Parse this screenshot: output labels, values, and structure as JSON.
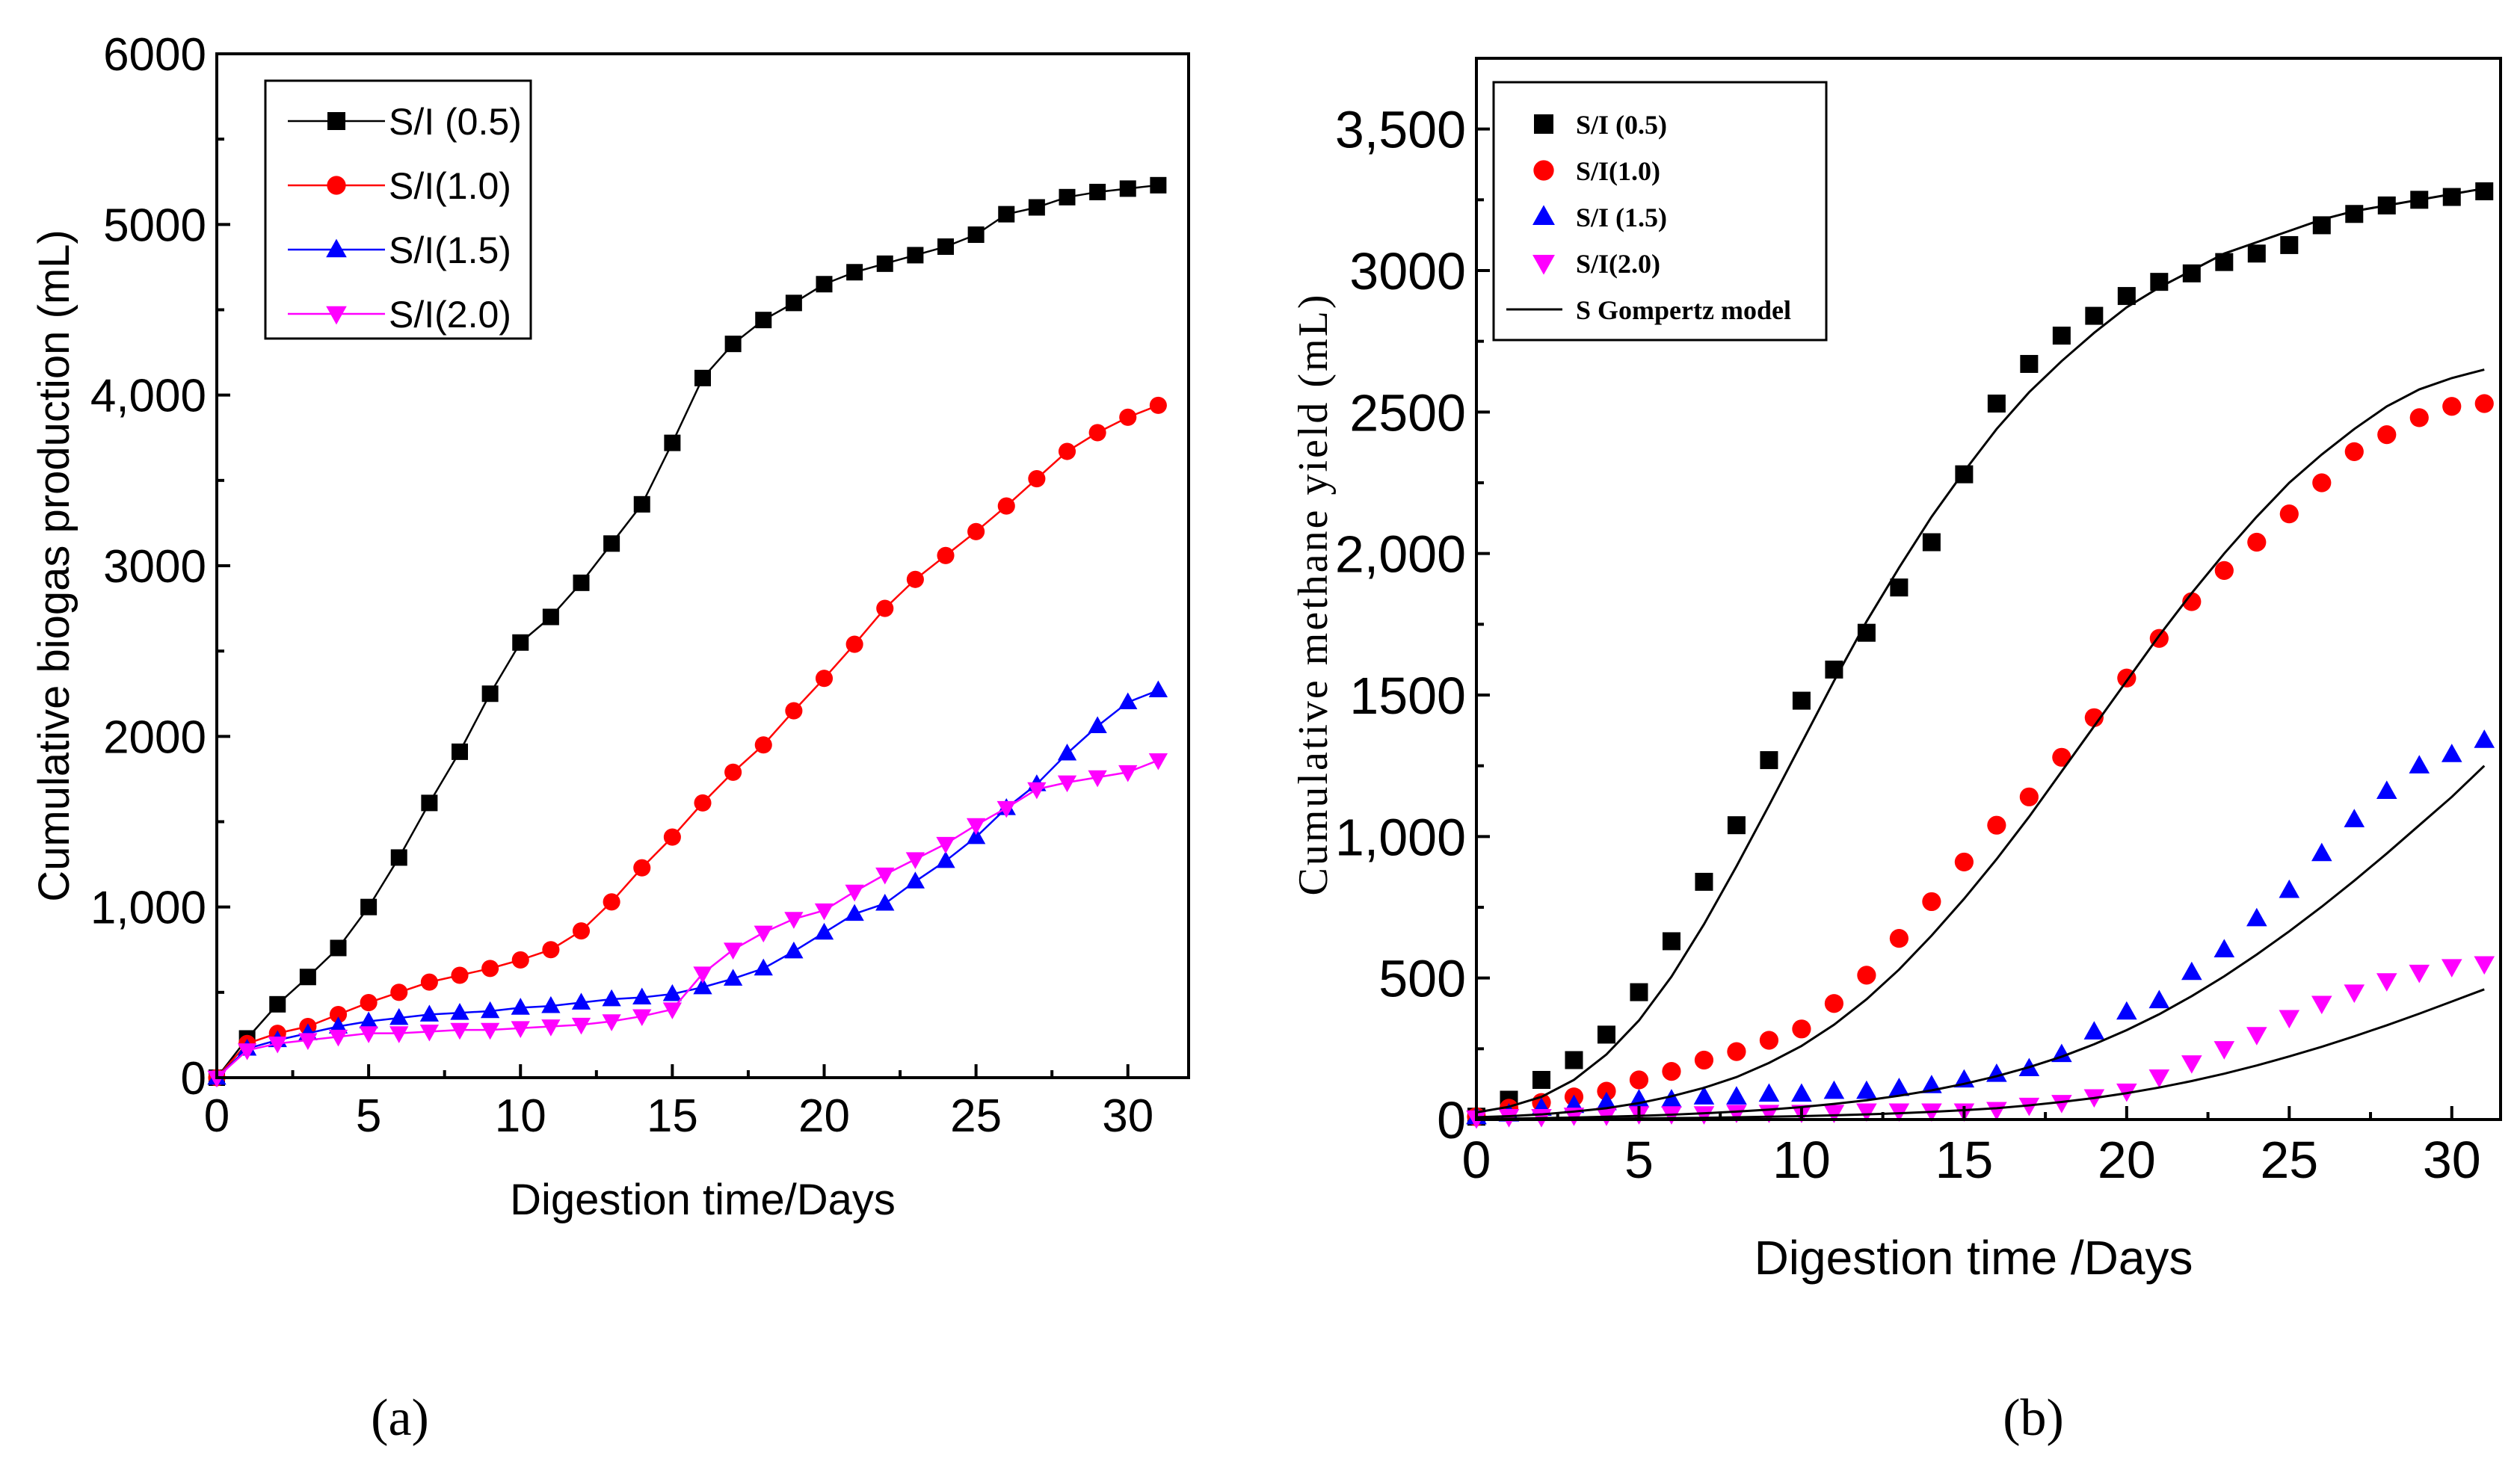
{
  "chart_data": [
    {
      "type": "line",
      "panel_label": "(a)",
      "title": "",
      "xlabel": "Digestion time/Days",
      "ylabel": "Cumulative biogas production (mL)",
      "xlim": [
        0,
        32
      ],
      "ylim": [
        0,
        6000
      ],
      "xticks": [
        "0",
        "5",
        "10",
        "15",
        "20",
        "25",
        "30"
      ],
      "yticks": [
        "0",
        "1,000",
        "2000",
        "3000",
        "4,000",
        "5000",
        "6000"
      ],
      "legend_position": "top-left",
      "x": [
        0,
        1,
        2,
        3,
        4,
        5,
        6,
        7,
        8,
        9,
        10,
        11,
        12,
        13,
        14,
        15,
        16,
        17,
        18,
        19,
        20,
        21,
        22,
        23,
        24,
        25,
        26,
        27,
        28,
        29,
        30,
        31
      ],
      "series": [
        {
          "name": "S/I (0.5)",
          "color": "#000000",
          "marker": "square",
          "values": [
            0,
            230,
            430,
            590,
            760,
            1000,
            1290,
            1610,
            1910,
            2250,
            2550,
            2700,
            2900,
            3130,
            3360,
            3720,
            4100,
            4300,
            4440,
            4540,
            4650,
            4720,
            4770,
            4820,
            4870,
            4940,
            5060,
            5100,
            5160,
            5190,
            5210,
            5230
          ]
        },
        {
          "name": "S/I(1.0)",
          "color": "#ff0000",
          "marker": "circle",
          "values": [
            0,
            200,
            260,
            300,
            370,
            440,
            500,
            560,
            600,
            640,
            690,
            750,
            860,
            1030,
            1230,
            1410,
            1610,
            1790,
            1950,
            2150,
            2340,
            2540,
            2750,
            2920,
            3060,
            3200,
            3350,
            3510,
            3670,
            3780,
            3870,
            3940
          ]
        },
        {
          "name": "S/I(1.5)",
          "color": "#0000ff",
          "marker": "triangle-up",
          "values": [
            0,
            170,
            220,
            260,
            300,
            330,
            350,
            370,
            380,
            390,
            410,
            420,
            440,
            460,
            470,
            490,
            530,
            580,
            640,
            740,
            850,
            960,
            1020,
            1150,
            1270,
            1410,
            1580,
            1720,
            1900,
            2060,
            2200,
            2270
          ]
        },
        {
          "name": "S/I(2.0)",
          "color": "#ff00ff",
          "marker": "triangle-down",
          "values": [
            0,
            160,
            200,
            220,
            240,
            260,
            260,
            270,
            280,
            280,
            290,
            300,
            310,
            330,
            360,
            400,
            610,
            750,
            850,
            930,
            980,
            1090,
            1190,
            1280,
            1370,
            1480,
            1580,
            1690,
            1730,
            1760,
            1790,
            1860
          ]
        }
      ]
    },
    {
      "type": "scatter",
      "panel_label": "(b)",
      "title": "",
      "xlabel": "Digestion time /Days",
      "ylabel": "Cumulative methane yield (mL)",
      "xlim": [
        0,
        31.5
      ],
      "ylim": [
        0,
        3750
      ],
      "xticks": [
        "0",
        "5",
        "10",
        "15",
        "20",
        "25",
        "30"
      ],
      "yticks": [
        "0",
        "500",
        "1,000",
        "1500",
        "2,000",
        "2500",
        "3000",
        "3,500"
      ],
      "legend_position": "top-left",
      "x": [
        0,
        1,
        2,
        3,
        4,
        5,
        6,
        7,
        8,
        9,
        10,
        11,
        12,
        13,
        14,
        15,
        16,
        17,
        18,
        19,
        20,
        21,
        22,
        23,
        24,
        25,
        26,
        27,
        28,
        29,
        30,
        31
      ],
      "series": [
        {
          "name": "S/I (0.5)",
          "color": "#000000",
          "marker": "square",
          "values": [
            10,
            70,
            140,
            210,
            300,
            450,
            630,
            840,
            1040,
            1270,
            1480,
            1590,
            1720,
            1880,
            2040,
            2280,
            2530,
            2670,
            2770,
            2840,
            2910,
            2960,
            2990,
            3030,
            3060,
            3090,
            3160,
            3200,
            3230,
            3250,
            3260,
            3280
          ]
        },
        {
          "name": "S/I(1.0)",
          "color": "#ff0000",
          "marker": "circle",
          "values": [
            10,
            40,
            60,
            80,
            100,
            140,
            170,
            210,
            240,
            280,
            320,
            410,
            510,
            640,
            770,
            910,
            1040,
            1140,
            1280,
            1420,
            1560,
            1700,
            1830,
            1940,
            2040,
            2140,
            2250,
            2360,
            2420,
            2480,
            2520,
            2530
          ]
        },
        {
          "name": "S/I (1.5)",
          "color": "#0000ff",
          "marker": "triangle-up",
          "values": [
            10,
            20,
            40,
            50,
            60,
            70,
            70,
            80,
            80,
            90,
            90,
            100,
            100,
            110,
            120,
            140,
            160,
            180,
            230,
            310,
            380,
            420,
            520,
            600,
            710,
            810,
            940,
            1060,
            1160,
            1250,
            1290,
            1340
          ]
        },
        {
          "name": "S/I(2.0)",
          "color": "#ff00ff",
          "marker": "triangle-down",
          "values": [
            5,
            10,
            10,
            15,
            15,
            20,
            20,
            20,
            25,
            25,
            25,
            25,
            30,
            30,
            30,
            30,
            35,
            50,
            60,
            80,
            100,
            150,
            200,
            250,
            300,
            360,
            410,
            450,
            490,
            520,
            540,
            550
          ]
        },
        {
          "name": "S Gompertz model",
          "color": "#000000",
          "marker": "none",
          "kind": "model-curves",
          "curves": [
            {
              "for": "S/I (0.5)",
              "values": [
                25,
                45,
                80,
                140,
                230,
                350,
                505,
                690,
                895,
                1110,
                1330,
                1550,
                1760,
                1950,
                2130,
                2290,
                2440,
                2570,
                2680,
                2780,
                2870,
                2940,
                3000,
                3060,
                3100,
                3140,
                3180,
                3210,
                3230,
                3250,
                3270,
                3290
              ]
            },
            {
              "for": "S/I(1.0)",
              "values": [
                8,
                12,
                18,
                28,
                40,
                58,
                82,
                112,
                150,
                200,
                260,
                335,
                425,
                530,
                650,
                780,
                920,
                1070,
                1230,
                1390,
                1550,
                1710,
                1860,
                2000,
                2130,
                2250,
                2350,
                2440,
                2520,
                2580,
                2620,
                2650
              ]
            },
            {
              "for": "S/I (1.5)",
              "values": [
                2,
                3,
                5,
                7,
                10,
                13,
                17,
                22,
                28,
                35,
                44,
                55,
                68,
                84,
                103,
                126,
                153,
                185,
                222,
                266,
                316,
                372,
                436,
                506,
                583,
                665,
                752,
                844,
                940,
                1040,
                1140,
                1250
              ]
            },
            {
              "for": "S/I(2.0)",
              "values": [
                0,
                1,
                1,
                2,
                3,
                4,
                5,
                6,
                8,
                10,
                12,
                15,
                18,
                22,
                27,
                33,
                40,
                50,
                62,
                76,
                93,
                113,
                136,
                162,
                191,
                223,
                257,
                294,
                333,
                374,
                417,
                460
              ]
            }
          ]
        }
      ]
    }
  ]
}
